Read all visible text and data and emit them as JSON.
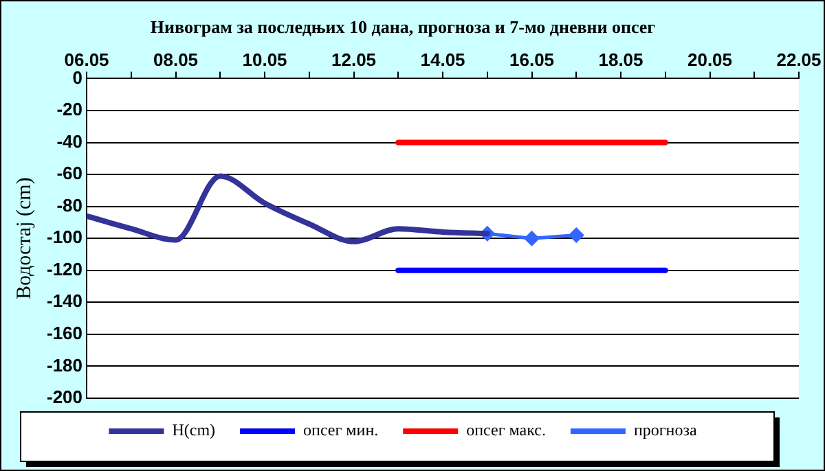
{
  "chart_data": {
    "type": "line",
    "title": "Нивограм за последњих 10 дана, прогноза и 7-мо дневни опсег",
    "ylabel": "Водостај (cm)",
    "xlim": [
      "--05-06",
      "--05-22"
    ],
    "xticks": [
      {
        "value": "--05-06",
        "label": "06.05"
      },
      {
        "value": "--05-07",
        "label": null
      },
      {
        "value": "--05-08",
        "label": "08.05"
      },
      {
        "value": "--05-09",
        "label": null
      },
      {
        "value": "--05-10",
        "label": "10.05"
      },
      {
        "value": "--05-11",
        "label": null
      },
      {
        "value": "--05-12",
        "label": "12.05"
      },
      {
        "value": "--05-13",
        "label": null
      },
      {
        "value": "--05-14",
        "label": "14.05"
      },
      {
        "value": "--05-15",
        "label": null
      },
      {
        "value": "--05-16",
        "label": "16.05"
      },
      {
        "value": "--05-17",
        "label": null
      },
      {
        "value": "--05-18",
        "label": "18.05"
      },
      {
        "value": "--05-19",
        "label": null
      },
      {
        "value": "--05-20",
        "label": "20.05"
      },
      {
        "value": "--05-21",
        "label": null
      },
      {
        "value": "--05-22",
        "label": "22.05"
      }
    ],
    "ylim": [
      -200,
      0
    ],
    "yticks": [
      -200,
      -180,
      -160,
      -140,
      -120,
      -100,
      -80,
      -60,
      -40,
      -20,
      0
    ],
    "grid": "y",
    "legend": "bottom",
    "series": [
      {
        "name": "H(cm)",
        "color": "#333399",
        "marker": "none",
        "x": [
          "--05-06",
          "--05-07",
          "--05-08",
          "--05-09",
          "--05-10",
          "--05-11",
          "--05-12",
          "--05-13",
          "--05-14",
          "--05-15"
        ],
        "values": [
          -86,
          -94,
          -101,
          -61,
          -78,
          -91,
          -102,
          -94,
          -96,
          -97
        ]
      },
      {
        "name": "опсег мин.",
        "color": "#0000ff",
        "marker": "none",
        "x": [
          "--05-13",
          "--05-19"
        ],
        "values": [
          -120,
          -120
        ]
      },
      {
        "name": "опсег макс.",
        "color": "#ff0000",
        "marker": "none",
        "x": [
          "--05-13",
          "--05-19"
        ],
        "values": [
          -40,
          -40
        ]
      },
      {
        "name": "прогноза",
        "color": "#3366ff",
        "marker": "diamond",
        "x": [
          "--05-15",
          "--05-16",
          "--05-17"
        ],
        "values": [
          -97,
          -100,
          -98
        ]
      }
    ]
  }
}
